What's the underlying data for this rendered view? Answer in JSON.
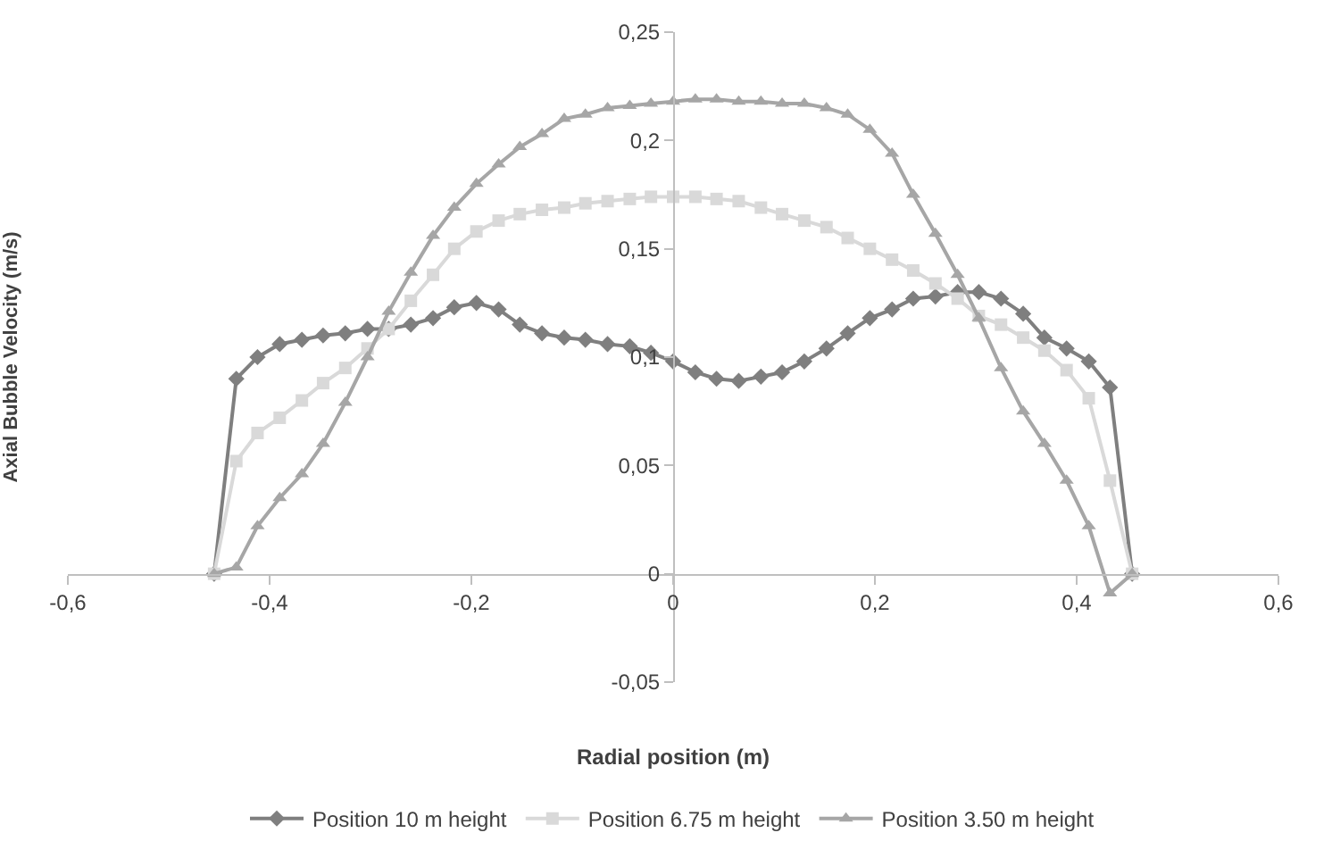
{
  "chart_data": {
    "type": "line",
    "xlabel": "Radial position (m)",
    "ylabel": "Axial Bubble Velocity (m/s)",
    "x": [
      -0.455,
      -0.433,
      -0.412,
      -0.39,
      -0.368,
      -0.347,
      -0.325,
      -0.303,
      -0.282,
      -0.26,
      -0.238,
      -0.217,
      -0.195,
      -0.173,
      -0.152,
      -0.13,
      -0.108,
      -0.087,
      -0.065,
      -0.043,
      -0.022,
      0,
      0.022,
      0.043,
      0.065,
      0.087,
      0.108,
      0.13,
      0.152,
      0.173,
      0.195,
      0.217,
      0.238,
      0.26,
      0.282,
      0.303,
      0.325,
      0.347,
      0.368,
      0.39,
      0.412,
      0.433,
      0.455
    ],
    "series": [
      {
        "name": "Position 10 m height",
        "color": "#7f7f7f",
        "marker": "diamond",
        "values": [
          0,
          0.09,
          0.1,
          0.106,
          0.108,
          0.11,
          0.111,
          0.113,
          0.113,
          0.115,
          0.118,
          0.123,
          0.125,
          0.122,
          0.115,
          0.111,
          0.109,
          0.108,
          0.106,
          0.105,
          0.102,
          0.098,
          0.093,
          0.09,
          0.089,
          0.091,
          0.093,
          0.098,
          0.104,
          0.111,
          0.118,
          0.122,
          0.127,
          0.128,
          0.13,
          0.13,
          0.127,
          0.12,
          0.109,
          0.104,
          0.098,
          0.086,
          0
        ]
      },
      {
        "name": "Position 6.75 m height",
        "color": "#d9d9d9",
        "marker": "square",
        "values": [
          0,
          0.052,
          0.065,
          0.072,
          0.08,
          0.088,
          0.095,
          0.104,
          0.113,
          0.126,
          0.138,
          0.15,
          0.158,
          0.163,
          0.166,
          0.168,
          0.169,
          0.171,
          0.172,
          0.173,
          0.174,
          0.174,
          0.174,
          0.173,
          0.172,
          0.169,
          0.166,
          0.163,
          0.16,
          0.155,
          0.15,
          0.145,
          0.14,
          0.134,
          0.127,
          0.119,
          0.115,
          0.109,
          0.103,
          0.094,
          0.081,
          0.043,
          0
        ]
      },
      {
        "name": "Position 3.50 m height",
        "color": "#a6a6a6",
        "marker": "triangle",
        "values": [
          0,
          0.003,
          0.022,
          0.035,
          0.046,
          0.06,
          0.079,
          0.1,
          0.121,
          0.139,
          0.156,
          0.169,
          0.18,
          0.189,
          0.197,
          0.203,
          0.21,
          0.212,
          0.215,
          0.216,
          0.217,
          0.218,
          0.219,
          0.219,
          0.218,
          0.218,
          0.217,
          0.217,
          0.215,
          0.212,
          0.205,
          0.194,
          0.175,
          0.157,
          0.138,
          0.118,
          0.095,
          0.075,
          0.06,
          0.043,
          0.022,
          -0.009,
          0
        ]
      }
    ],
    "xlim": [
      -0.6,
      0.6
    ],
    "xticks": [
      {
        "value": -0.6,
        "label": "-0,6"
      },
      {
        "value": -0.4,
        "label": "-0,4"
      },
      {
        "value": -0.2,
        "label": "-0,2"
      },
      0,
      {
        "value": 0.2,
        "label": "0,2"
      },
      {
        "value": 0.4,
        "label": "0,4"
      },
      {
        "value": 0.6,
        "label": "0,6"
      }
    ],
    "ylim": [
      -0.05,
      0.25
    ],
    "yticks": [
      {
        "value": -0.05,
        "label": "-0,05"
      },
      0,
      {
        "value": 0.05,
        "label": "0,05"
      },
      {
        "value": 0.1,
        "label": "0,1"
      },
      {
        "value": 0.15,
        "label": "0,15"
      },
      {
        "value": 0.2,
        "label": "0,2"
      },
      {
        "value": 0.25,
        "label": "0,25"
      }
    ],
    "grid": false,
    "legend": "bottom",
    "line_style": "solid"
  }
}
